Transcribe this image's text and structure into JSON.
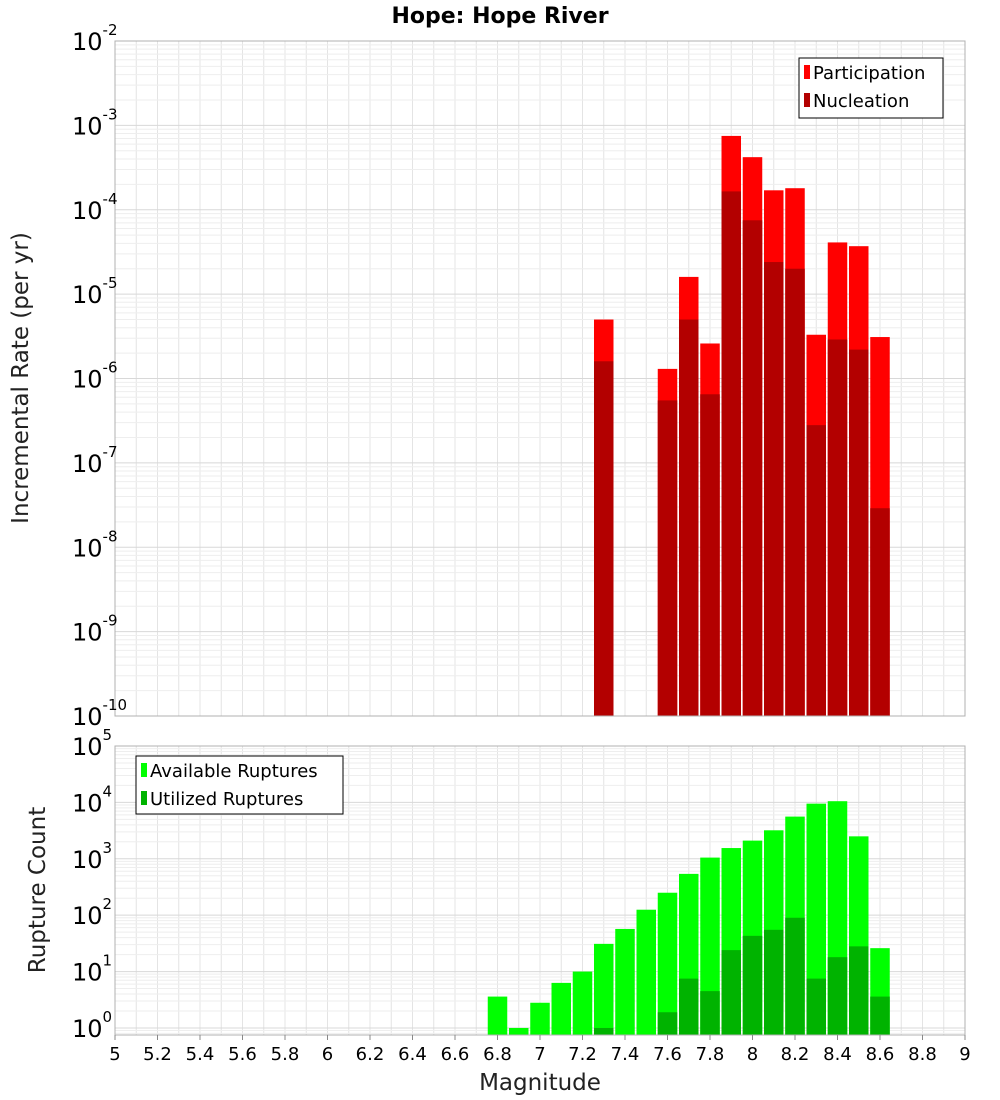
{
  "title": "Hope: Hope River",
  "colors": {
    "participation": "#ff0000",
    "nucleation": "#b30000",
    "available": "#00ff00",
    "utilized": "#00b300",
    "grid": "#e4e4e4",
    "frame": "#b0b0b0"
  },
  "chart_data": [
    {
      "type": "bar",
      "panel": "top",
      "ylabel": "Incremental Rate (per yr)",
      "yscale": "log",
      "ylim": [
        1e-10,
        0.01
      ],
      "xlim": [
        5,
        9
      ],
      "grid": true,
      "legend_position": "top-right",
      "y_ticks": [
        {
          "base": "10",
          "exp": "-10"
        },
        {
          "base": "10",
          "exp": "-9"
        },
        {
          "base": "10",
          "exp": "-8"
        },
        {
          "base": "10",
          "exp": "-7"
        },
        {
          "base": "10",
          "exp": "-6"
        },
        {
          "base": "10",
          "exp": "-5"
        },
        {
          "base": "10",
          "exp": "-4"
        },
        {
          "base": "10",
          "exp": "-3"
        },
        {
          "base": "10",
          "exp": "-2"
        }
      ],
      "x": [
        7.3,
        7.6,
        7.7,
        7.8,
        7.9,
        8.0,
        8.1,
        8.2,
        8.3,
        8.4,
        8.5,
        8.6
      ],
      "series": [
        {
          "name": "Participation",
          "color_key": "participation",
          "values": [
            5e-06,
            1.3e-06,
            1.6e-05,
            2.6e-06,
            0.00075,
            0.00042,
            0.00017,
            0.00018,
            3.3e-06,
            4.1e-05,
            3.7e-05,
            3.1e-06
          ]
        },
        {
          "name": "Nucleation",
          "color_key": "nucleation",
          "values": [
            1.6e-06,
            5.5e-07,
            5e-06,
            6.5e-07,
            0.000165,
            7.5e-05,
            2.4e-05,
            2e-05,
            2.8e-07,
            2.9e-06,
            2.2e-06,
            2.9e-08
          ]
        }
      ]
    },
    {
      "type": "bar",
      "panel": "bottom",
      "ylabel": "Rupture Count",
      "xlabel": "Magnitude",
      "yscale": "log",
      "ylim": [
        0.75,
        100000.0
      ],
      "xlim": [
        5,
        9
      ],
      "grid": true,
      "legend_position": "top-left",
      "y_ticks": [
        {
          "base": "10",
          "exp": "0",
          "value": 1
        },
        {
          "base": "10",
          "exp": "1",
          "value": 10
        },
        {
          "base": "10",
          "exp": "2",
          "value": 100
        },
        {
          "base": "10",
          "exp": "3",
          "value": 1000
        },
        {
          "base": "10",
          "exp": "4",
          "value": 10000
        },
        {
          "base": "10",
          "exp": "5",
          "value": 100000
        }
      ],
      "x_ticks": [
        "5",
        "5.2",
        "5.4",
        "5.6",
        "5.8",
        "6",
        "6.2",
        "6.4",
        "6.6",
        "6.8",
        "7",
        "7.2",
        "7.4",
        "7.6",
        "7.8",
        "8",
        "8.2",
        "8.4",
        "8.6",
        "8.8",
        "9"
      ],
      "x": [
        6.8,
        6.9,
        7.0,
        7.1,
        7.2,
        7.3,
        7.4,
        7.5,
        7.6,
        7.7,
        7.8,
        7.9,
        8.0,
        8.1,
        8.2,
        8.3,
        8.4,
        8.5,
        8.6
      ],
      "series": [
        {
          "name": "Available Ruptures",
          "color_key": "available",
          "values": [
            3.6,
            1,
            2.8,
            6.3,
            10,
            31,
            57,
            125,
            250,
            540,
            1050,
            1550,
            2100,
            3200,
            5600,
            9500,
            10500,
            2500,
            26
          ]
        },
        {
          "name": "Utilized Ruptures",
          "color_key": "utilized",
          "values": [
            0,
            0,
            0,
            0,
            0,
            1,
            0,
            0,
            1.9,
            7.5,
            4.5,
            24,
            43,
            55,
            90,
            7.5,
            18,
            28,
            3.6
          ]
        }
      ]
    }
  ]
}
